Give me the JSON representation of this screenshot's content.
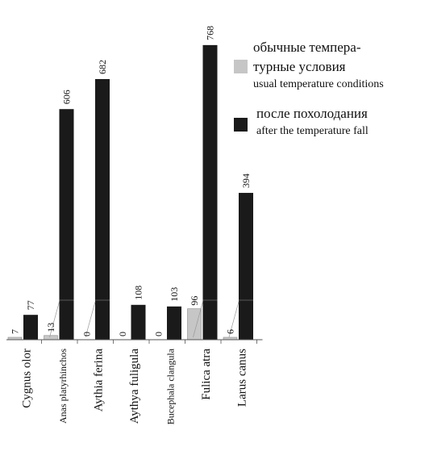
{
  "chart_data": {
    "type": "bar",
    "categories": [
      "Cygnus olor",
      "Anas platyrhinchos",
      "Aythia ferina",
      "Aythya fuligula",
      "Bucephala clangula",
      "Fulica atra",
      "Larus canus"
    ],
    "series": [
      {
        "name": "обычные температурные условия / usual temperature conditions",
        "color": "#c6c6c6",
        "values": [
          7,
          13,
          0,
          0,
          0,
          96,
          6
        ]
      },
      {
        "name": "после похолодания / after the temperature fall",
        "color": "#1a1a1a",
        "values": [
          77,
          606,
          682,
          108,
          103,
          768,
          394
        ]
      }
    ],
    "data_labels": {
      "series0": [
        "7",
        "13",
        "0",
        "0",
        "0",
        "96",
        "6"
      ],
      "series1": [
        "77",
        "606",
        "682",
        "108",
        "103",
        "768",
        "394"
      ]
    },
    "axis_break": {
      "lower_range": [
        0,
        120
      ],
      "note": "broken value axis: lower segment linear up to ~120, upper segment compressed"
    },
    "legend_placement": "top-right",
    "grid": false,
    "title": "",
    "xlabel": "",
    "ylabel": ""
  },
  "legend": {
    "series0_ru_line1": "обычные темпера-",
    "series0_ru_line2": "турные условия",
    "series0_en": "usual temperature conditions",
    "series1_ru": "после похолодания",
    "series1_en": "after the temperature fall",
    "series0_color": "#c6c6c6",
    "series1_color": "#1a1a1a"
  }
}
